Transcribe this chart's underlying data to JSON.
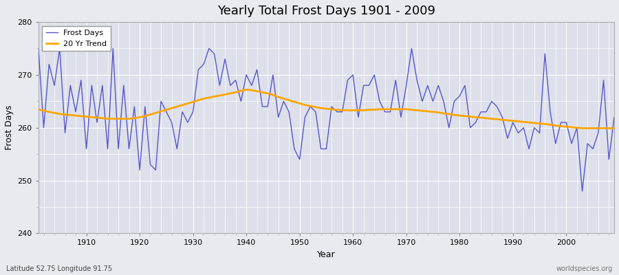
{
  "title": "Yearly Total Frost Days 1901 - 2009",
  "xlabel": "Year",
  "ylabel": "Frost Days",
  "subtitle_lat_lon": "Latitude 52.75 Longitude 91.75",
  "watermark": "worldspecies.org",
  "ylim": [
    240,
    280
  ],
  "yticks": [
    240,
    250,
    260,
    270,
    280
  ],
  "line_color": "#5555cc",
  "trend_color": "#FFA500",
  "bg_color": "#dde0ea",
  "fig_bg_color": "#e8eaf0",
  "years": [
    1901,
    1902,
    1903,
    1904,
    1905,
    1906,
    1907,
    1908,
    1909,
    1910,
    1911,
    1912,
    1913,
    1914,
    1915,
    1916,
    1917,
    1918,
    1919,
    1920,
    1921,
    1922,
    1923,
    1924,
    1925,
    1926,
    1927,
    1928,
    1929,
    1930,
    1931,
    1932,
    1933,
    1934,
    1935,
    1936,
    1937,
    1938,
    1939,
    1940,
    1941,
    1942,
    1943,
    1944,
    1945,
    1946,
    1947,
    1948,
    1949,
    1950,
    1951,
    1952,
    1953,
    1954,
    1955,
    1956,
    1957,
    1958,
    1959,
    1960,
    1961,
    1962,
    1963,
    1964,
    1965,
    1966,
    1967,
    1968,
    1969,
    1970,
    1971,
    1972,
    1973,
    1974,
    1975,
    1976,
    1977,
    1978,
    1979,
    1980,
    1981,
    1982,
    1983,
    1984,
    1985,
    1986,
    1987,
    1988,
    1989,
    1990,
    1991,
    1992,
    1993,
    1994,
    1995,
    1996,
    1997,
    1998,
    1999,
    2000,
    2001,
    2002,
    2003,
    2004,
    2005,
    2006,
    2007,
    2008,
    2009
  ],
  "frost_days": [
    275,
    260,
    272,
    268,
    275,
    259,
    268,
    263,
    269,
    256,
    268,
    261,
    268,
    256,
    275,
    256,
    268,
    256,
    264,
    252,
    264,
    253,
    252,
    265,
    263,
    261,
    256,
    263,
    261,
    263,
    271,
    272,
    275,
    274,
    268,
    273,
    268,
    269,
    265,
    270,
    268,
    271,
    264,
    264,
    270,
    262,
    265,
    263,
    256,
    254,
    262,
    264,
    263,
    256,
    256,
    264,
    263,
    263,
    269,
    270,
    262,
    268,
    268,
    270,
    265,
    263,
    263,
    269,
    262,
    268,
    275,
    269,
    265,
    268,
    265,
    268,
    265,
    260,
    265,
    266,
    268,
    260,
    261,
    263,
    263,
    265,
    264,
    262,
    258,
    261,
    259,
    260,
    256,
    260,
    259,
    274,
    263,
    257,
    261,
    261,
    257,
    260,
    248,
    257,
    256,
    259,
    269,
    254,
    262
  ],
  "trend_values": [
    263.5,
    263.2,
    263.0,
    262.8,
    262.6,
    262.5,
    262.4,
    262.3,
    262.2,
    262.1,
    262.0,
    261.9,
    261.8,
    261.7,
    261.7,
    261.7,
    261.7,
    261.7,
    261.8,
    262.0,
    262.2,
    262.5,
    262.8,
    263.1,
    263.4,
    263.7,
    264.0,
    264.3,
    264.6,
    264.9,
    265.2,
    265.5,
    265.7,
    265.9,
    266.1,
    266.3,
    266.5,
    266.7,
    267.0,
    267.2,
    267.1,
    266.9,
    266.7,
    266.5,
    266.2,
    265.8,
    265.5,
    265.2,
    264.9,
    264.6,
    264.3,
    264.1,
    263.9,
    263.7,
    263.6,
    263.5,
    263.4,
    263.3,
    263.3,
    263.3,
    263.3,
    263.3,
    263.4,
    263.4,
    263.5,
    263.5,
    263.5,
    263.5,
    263.5,
    263.5,
    263.4,
    263.3,
    263.2,
    263.1,
    263.0,
    262.9,
    262.7,
    262.6,
    262.4,
    262.3,
    262.2,
    262.1,
    262.0,
    261.9,
    261.8,
    261.7,
    261.6,
    261.5,
    261.4,
    261.3,
    261.2,
    261.1,
    261.0,
    260.9,
    260.8,
    260.7,
    260.6,
    260.4,
    260.3,
    260.2,
    260.1,
    260.0,
    259.9,
    259.9,
    259.9,
    259.9,
    259.9,
    259.9,
    259.9
  ]
}
